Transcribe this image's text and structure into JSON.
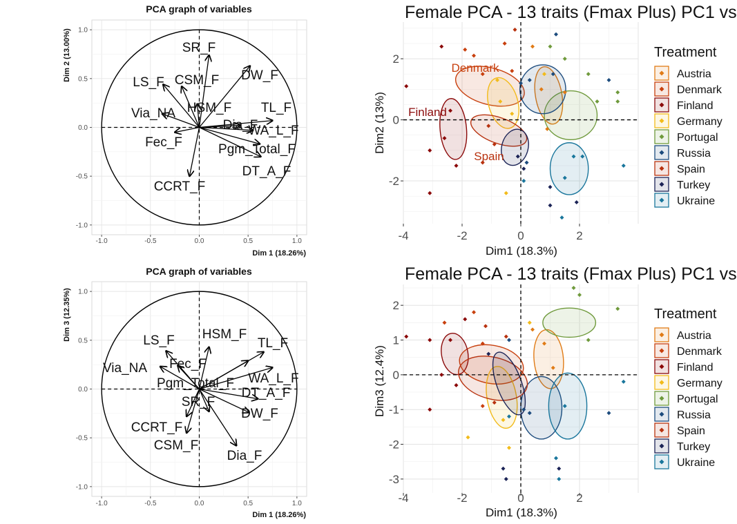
{
  "colors": {
    "Austria": "#e07b16",
    "Denmark": "#c8400e",
    "Finland": "#8b0a0a",
    "Germany": "#f2bb1a",
    "Portugal": "#6f9a3c",
    "Russia": "#1c4b7d",
    "Spain": "#b8320f",
    "Turkey": "#1b2356",
    "Ukraine": "#19769c"
  },
  "chart_data": [
    {
      "type": "scatter",
      "subtype": "pca-variable-correlation-circle",
      "title": "PCA graph of variables",
      "xlabel": "Dim 1 (18.26%)",
      "ylabel": "Dim 2 (13.00%)",
      "xlim": [
        -1.0,
        1.0
      ],
      "ylim": [
        -1.0,
        1.0
      ],
      "xticks": [
        "-1.0",
        "-0.5",
        "0.0",
        "0.5",
        "1.0"
      ],
      "yticks": [
        "-1.0",
        "-0.5",
        "0.0",
        "0.5",
        "1.0"
      ],
      "grid": true,
      "variables": [
        {
          "name": "SR_F",
          "x": 0.1,
          "y": 0.74
        },
        {
          "name": "DW_F",
          "x": 0.52,
          "y": 0.63
        },
        {
          "name": "LS_F",
          "x": -0.37,
          "y": 0.44
        },
        {
          "name": "CSM_F",
          "x": -0.18,
          "y": 0.42
        },
        {
          "name": "HSM_F",
          "x": -0.02,
          "y": 0.24
        },
        {
          "name": "Via_NA",
          "x": -0.38,
          "y": 0.14
        },
        {
          "name": "TL_F",
          "x": 0.75,
          "y": 0.07
        },
        {
          "name": "Dia_F",
          "x": 0.42,
          "y": 0.02
        },
        {
          "name": "WA_L_F",
          "x": 0.55,
          "y": -0.03
        },
        {
          "name": "Fec_F",
          "x": -0.25,
          "y": -0.05
        },
        {
          "name": "Pgm_Total_F",
          "x": 0.62,
          "y": -0.17
        },
        {
          "name": "DT_A_F",
          "x": 0.63,
          "y": -0.3
        },
        {
          "name": "CCRT_F",
          "x": -0.1,
          "y": -0.5
        }
      ]
    },
    {
      "type": "scatter",
      "title": "Female PCA - 13 traits (Fmax Plus) PC1 vs",
      "xlabel": "Dim1 (18.3%)",
      "ylabel": "Dim2 (13%)",
      "xlim": [
        -4.0,
        4.0
      ],
      "ylim": [
        -3.4,
        3.2
      ],
      "xticks": [
        "-4",
        "-2",
        "0",
        "2"
      ],
      "yticks": [
        "-2",
        "0",
        "2"
      ],
      "grid": true,
      "legend_title": "Treatment",
      "legend_position": "right",
      "groups": [
        {
          "name": "Austria",
          "cx": 0.95,
          "cy": 0.8,
          "rx": 0.45,
          "ry": 0.95,
          "angle": 10
        },
        {
          "name": "Denmark",
          "cx": -1.05,
          "cy": 1.1,
          "rx": 1.2,
          "ry": 0.6,
          "angle": -15
        },
        {
          "name": "Finland",
          "cx": -2.3,
          "cy": -0.3,
          "rx": 0.45,
          "ry": 1.0,
          "angle": 5
        },
        {
          "name": "Germany",
          "cx": -0.6,
          "cy": 0.55,
          "rx": 0.5,
          "ry": 0.85,
          "angle": 15
        },
        {
          "name": "Portugal",
          "cx": 1.7,
          "cy": 0.15,
          "rx": 0.9,
          "ry": 0.8,
          "angle": 0
        },
        {
          "name": "Russia",
          "cx": 0.75,
          "cy": 1.0,
          "rx": 0.78,
          "ry": 0.8,
          "angle": 0
        },
        {
          "name": "Spain",
          "cx": -0.75,
          "cy": -0.35,
          "rx": 1.0,
          "ry": 0.42,
          "angle": -20
        },
        {
          "name": "Turkey",
          "cx": -0.2,
          "cy": -0.9,
          "rx": 0.45,
          "ry": 0.6,
          "angle": -15
        },
        {
          "name": "Ukraine",
          "cx": 1.65,
          "cy": -1.6,
          "rx": 0.65,
          "ry": 0.85,
          "angle": 0
        }
      ],
      "group_labels": [
        "Denmark",
        "Finland",
        "Spain"
      ],
      "points": [
        {
          "g": "Finland",
          "x": -3.9,
          "y": 1.1
        },
        {
          "g": "Finland",
          "x": -3.1,
          "y": -1.0
        },
        {
          "g": "Finland",
          "x": -3.1,
          "y": -2.4
        },
        {
          "g": "Finland",
          "x": -2.7,
          "y": 2.4
        },
        {
          "g": "Finland",
          "x": -2.6,
          "y": -0.6
        },
        {
          "g": "Finland",
          "x": -2.2,
          "y": -1.5
        },
        {
          "g": "Finland",
          "x": -2.4,
          "y": 0.3
        },
        {
          "g": "Denmark",
          "x": -1.9,
          "y": 2.3
        },
        {
          "g": "Denmark",
          "x": -1.6,
          "y": 2.1
        },
        {
          "g": "Denmark",
          "x": -1.3,
          "y": 1.5
        },
        {
          "g": "Denmark",
          "x": -0.55,
          "y": 2.5
        },
        {
          "g": "Denmark",
          "x": -0.3,
          "y": 1.6
        },
        {
          "g": "Spain",
          "x": -1.3,
          "y": -1.4
        },
        {
          "g": "Spain",
          "x": -0.9,
          "y": -0.8
        },
        {
          "g": "Spain",
          "x": -1.1,
          "y": -0.2
        },
        {
          "g": "Spain",
          "x": -0.2,
          "y": 2.95
        },
        {
          "g": "Germany",
          "x": -0.8,
          "y": 1.3
        },
        {
          "g": "Germany",
          "x": -0.7,
          "y": 0.6
        },
        {
          "g": "Germany",
          "x": -0.5,
          "y": -2.4
        },
        {
          "g": "Germany",
          "x": -0.3,
          "y": 0.2
        },
        {
          "g": "Germany",
          "x": 0.8,
          "y": 1.5
        },
        {
          "g": "Austria",
          "x": 0.4,
          "y": 2.4
        },
        {
          "g": "Austria",
          "x": 0.7,
          "y": 1.0
        },
        {
          "g": "Austria",
          "x": 0.9,
          "y": -0.3
        },
        {
          "g": "Austria",
          "x": 1.5,
          "y": 0.9
        },
        {
          "g": "Russia",
          "x": 0.0,
          "y": 1.2
        },
        {
          "g": "Russia",
          "x": 0.3,
          "y": 1.3
        },
        {
          "g": "Russia",
          "x": 0.2,
          "y": -1.4
        },
        {
          "g": "Russia",
          "x": 1.2,
          "y": 2.8
        },
        {
          "g": "Russia",
          "x": 1.1,
          "y": 1.5
        },
        {
          "g": "Russia",
          "x": 3.0,
          "y": 1.3
        },
        {
          "g": "Portugal",
          "x": 1.0,
          "y": 2.4
        },
        {
          "g": "Portugal",
          "x": 1.5,
          "y": 2.0
        },
        {
          "g": "Portugal",
          "x": 2.3,
          "y": 1.5
        },
        {
          "g": "Portugal",
          "x": 2.6,
          "y": 0.6
        },
        {
          "g": "Portugal",
          "x": 3.3,
          "y": 0.9
        },
        {
          "g": "Portugal",
          "x": 3.3,
          "y": 0.6
        },
        {
          "g": "Turkey",
          "x": -0.1,
          "y": -1.2
        },
        {
          "g": "Turkey",
          "x": 0.1,
          "y": -1.6
        },
        {
          "g": "Turkey",
          "x": 1.0,
          "y": -2.2
        },
        {
          "g": "Turkey",
          "x": 1.0,
          "y": -2.8
        },
        {
          "g": "Turkey",
          "x": 1.9,
          "y": -2.7
        },
        {
          "g": "Ukraine",
          "x": 1.5,
          "y": -1.9
        },
        {
          "g": "Ukraine",
          "x": 1.8,
          "y": -1.2
        },
        {
          "g": "Ukraine",
          "x": 2.1,
          "y": -1.2
        },
        {
          "g": "Ukraine",
          "x": 1.4,
          "y": -3.2
        },
        {
          "g": "Ukraine",
          "x": 3.5,
          "y": -1.5
        },
        {
          "g": "Ukraine",
          "x": 0.1,
          "y": -2.0
        }
      ]
    },
    {
      "type": "scatter",
      "subtype": "pca-variable-correlation-circle",
      "title": "PCA graph of variables",
      "xlabel": "Dim 1 (18.26%)",
      "ylabel": "Dim 3 (12.35%)",
      "xlim": [
        -1.0,
        1.0
      ],
      "ylim": [
        -1.0,
        1.0
      ],
      "xticks": [
        "-1.0",
        "-0.5",
        "0.0",
        "0.5",
        "1.0"
      ],
      "yticks": [
        "-1.0",
        "-0.5",
        "0.0",
        "0.5",
        "1.0"
      ],
      "grid": true,
      "variables": [
        {
          "name": "HSM_F",
          "x": 0.1,
          "y": 0.43
        },
        {
          "name": "TL_F",
          "x": 0.66,
          "y": 0.38
        },
        {
          "name": "LS_F",
          "x": -0.34,
          "y": 0.39
        },
        {
          "name": "Fec_F",
          "x": -0.22,
          "y": 0.24
        },
        {
          "name": "Via_NA",
          "x": -0.4,
          "y": 0.23
        },
        {
          "name": "WA_L_F",
          "x": 0.75,
          "y": 0.22
        },
        {
          "name": "Pgm_Total_F",
          "x": 0.5,
          "y": 0.29
        },
        {
          "name": "DT_A_F",
          "x": 0.6,
          "y": -0.1
        },
        {
          "name": "SR_F",
          "x": 0.1,
          "y": -0.23
        },
        {
          "name": "DW_F",
          "x": 0.51,
          "y": -0.24
        },
        {
          "name": "CCRT_F",
          "x": -0.13,
          "y": -0.28
        },
        {
          "name": "CSM_F",
          "x": -0.13,
          "y": -0.45
        },
        {
          "name": "Dia_F",
          "x": 0.38,
          "y": -0.58
        }
      ]
    },
    {
      "type": "scatter",
      "title": "Female PCA - 13 traits (Fmax Plus) PC1 vs",
      "xlabel": "Dim1 (18.3%)",
      "ylabel": "Dim3 (12.4%)",
      "xlim": [
        -4.0,
        4.0
      ],
      "ylim": [
        -3.4,
        2.6
      ],
      "xticks": [
        "-4",
        "-2",
        "0",
        "2"
      ],
      "yticks": [
        "-3",
        "-2",
        "-1",
        "0",
        "1",
        "2"
      ],
      "grid": true,
      "legend_title": "Treatment",
      "legend_position": "right",
      "groups": [
        {
          "name": "Austria",
          "cx": 0.95,
          "cy": 0.45,
          "rx": 0.5,
          "ry": 0.85,
          "angle": 5
        },
        {
          "name": "Denmark",
          "cx": -1.0,
          "cy": 0.3,
          "rx": 1.1,
          "ry": 0.55,
          "angle": -10
        },
        {
          "name": "Finland",
          "cx": -2.25,
          "cy": 0.6,
          "rx": 0.45,
          "ry": 0.6,
          "angle": 10
        },
        {
          "name": "Germany",
          "cx": -0.65,
          "cy": -0.65,
          "rx": 0.5,
          "ry": 0.9,
          "angle": 10
        },
        {
          "name": "Portugal",
          "cx": 1.65,
          "cy": 1.5,
          "rx": 0.9,
          "ry": 0.42,
          "angle": 0
        },
        {
          "name": "Russia",
          "cx": 0.7,
          "cy": -0.95,
          "rx": 0.7,
          "ry": 0.9,
          "angle": 0
        },
        {
          "name": "Spain",
          "cx": -0.95,
          "cy": -0.1,
          "rx": 1.2,
          "ry": 0.6,
          "angle": -15
        },
        {
          "name": "Turkey",
          "cx": -0.4,
          "cy": -0.25,
          "rx": 0.42,
          "ry": 0.95,
          "angle": 20
        },
        {
          "name": "Ukraine",
          "cx": 1.6,
          "cy": -0.9,
          "rx": 0.65,
          "ry": 0.95,
          "angle": 0
        }
      ],
      "points": [
        {
          "g": "Finland",
          "x": -3.9,
          "y": 1.1
        },
        {
          "g": "Finland",
          "x": -3.1,
          "y": 1.0
        },
        {
          "g": "Finland",
          "x": -3.1,
          "y": -1.0
        },
        {
          "g": "Finland",
          "x": -2.7,
          "y": 0.0
        },
        {
          "g": "Finland",
          "x": -2.4,
          "y": 1.0
        },
        {
          "g": "Finland",
          "x": -2.2,
          "y": -0.3
        },
        {
          "g": "Finland",
          "x": -1.9,
          "y": 1.6
        },
        {
          "g": "Denmark",
          "x": -2.6,
          "y": 1.5
        },
        {
          "g": "Denmark",
          "x": -1.6,
          "y": 1.8
        },
        {
          "g": "Denmark",
          "x": -1.3,
          "y": 0.9
        },
        {
          "g": "Denmark",
          "x": -1.3,
          "y": -0.9
        },
        {
          "g": "Spain",
          "x": -1.2,
          "y": 1.4
        },
        {
          "g": "Spain",
          "x": -0.9,
          "y": -0.8
        },
        {
          "g": "Spain",
          "x": -0.5,
          "y": 1.1
        },
        {
          "g": "Germany",
          "x": -1.8,
          "y": -1.8
        },
        {
          "g": "Germany",
          "x": -0.6,
          "y": -1.3
        },
        {
          "g": "Germany",
          "x": -0.4,
          "y": -2.1
        },
        {
          "g": "Germany",
          "x": 0.3,
          "y": 1.5
        },
        {
          "g": "Austria",
          "x": 0.4,
          "y": 1.3
        },
        {
          "g": "Austria",
          "x": 0.8,
          "y": 0.9
        },
        {
          "g": "Austria",
          "x": 1.1,
          "y": 0.2
        },
        {
          "g": "Portugal",
          "x": 1.8,
          "y": 2.5
        },
        {
          "g": "Portugal",
          "x": 2.0,
          "y": 2.3
        },
        {
          "g": "Portugal",
          "x": 2.3,
          "y": 1.0
        },
        {
          "g": "Portugal",
          "x": 3.3,
          "y": 1.9
        },
        {
          "g": "Russia",
          "x": -0.4,
          "y": 1.0
        },
        {
          "g": "Russia",
          "x": 0.3,
          "y": -1.1
        },
        {
          "g": "Russia",
          "x": 0.1,
          "y": -1.0
        },
        {
          "g": "Russia",
          "x": 3.0,
          "y": -1.1
        },
        {
          "g": "Turkey",
          "x": -1.1,
          "y": 0.6
        },
        {
          "g": "Turkey",
          "x": -0.6,
          "y": -2.7
        },
        {
          "g": "Turkey",
          "x": -0.5,
          "y": -3.0
        },
        {
          "g": "Turkey",
          "x": 1.3,
          "y": -2.7
        },
        {
          "g": "Ukraine",
          "x": 1.2,
          "y": -2.4
        },
        {
          "g": "Ukraine",
          "x": 1.3,
          "y": -3.0
        },
        {
          "g": "Ukraine",
          "x": 1.5,
          "y": -0.9
        },
        {
          "g": "Ukraine",
          "x": 3.5,
          "y": -0.2
        },
        {
          "g": "Ukraine",
          "x": -0.4,
          "y": -1.2
        }
      ]
    }
  ]
}
